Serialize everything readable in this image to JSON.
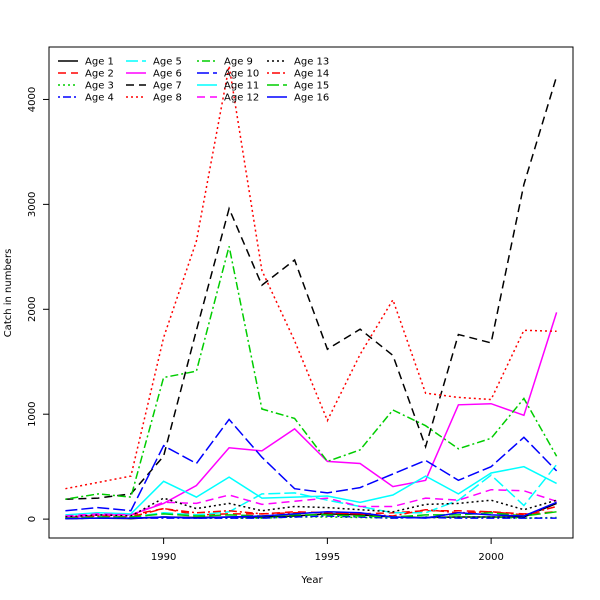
{
  "chart_data": {
    "type": "line",
    "title": "",
    "xlabel": "Year",
    "ylabel": "Catch in numbers",
    "xlim": [
      1986.5,
      2002.5
    ],
    "ylim": [
      -180,
      4500
    ],
    "x_ticks": [
      1990,
      1995,
      2000
    ],
    "y_ticks": [
      0,
      1000,
      2000,
      3000,
      4000
    ],
    "legend_position": "top-left",
    "x": [
      1987,
      1988,
      1989,
      1990,
      1991,
      1992,
      1993,
      1994,
      1995,
      1996,
      1997,
      1998,
      1999,
      2000,
      2001,
      2002
    ],
    "series": [
      {
        "name": "Age 1",
        "color": "#000000",
        "dash": "solid",
        "values": [
          5,
          10,
          5,
          20,
          15,
          20,
          20,
          30,
          50,
          40,
          20,
          15,
          20,
          20,
          20,
          150
        ]
      },
      {
        "name": "Age 2",
        "color": "#ff0000",
        "dash": "dashed",
        "values": [
          30,
          60,
          40,
          100,
          40,
          50,
          50,
          70,
          60,
          50,
          60,
          80,
          80,
          70,
          50,
          70
        ]
      },
      {
        "name": "Age 3",
        "color": "#00cd00",
        "dash": "dotted",
        "values": [
          5,
          10,
          10,
          20,
          10,
          10,
          10,
          20,
          20,
          15,
          10,
          20,
          20,
          20,
          10,
          15
        ]
      },
      {
        "name": "Age 4",
        "color": "#0000ff",
        "dash": "dotdash",
        "values": [
          5,
          10,
          10,
          10,
          10,
          10,
          10,
          20,
          30,
          20,
          10,
          15,
          10,
          10,
          10,
          10
        ]
      },
      {
        "name": "Age 5",
        "color": "#00ffff",
        "dash": "longdash",
        "values": [
          10,
          20,
          20,
          60,
          40,
          70,
          240,
          250,
          180,
          120,
          60,
          60,
          180,
          420,
          130,
          520
        ]
      },
      {
        "name": "Age 6",
        "color": "#ff00ff",
        "dash": "solid",
        "values": [
          20,
          40,
          40,
          150,
          320,
          680,
          650,
          860,
          550,
          530,
          310,
          370,
          1090,
          1100,
          990,
          1970
        ]
      },
      {
        "name": "Age 7",
        "color": "#000000",
        "dash": "dashed",
        "values": [
          190,
          200,
          240,
          600,
          1800,
          2960,
          2230,
          2470,
          1620,
          1810,
          1560,
          690,
          1760,
          1680,
          3190,
          4220
        ]
      },
      {
        "name": "Age 8",
        "color": "#ff0000",
        "dash": "dotted",
        "values": [
          290,
          350,
          410,
          1730,
          2650,
          4320,
          2370,
          1700,
          940,
          1570,
          2090,
          1200,
          1160,
          1140,
          1800,
          1790
        ]
      },
      {
        "name": "Age 9",
        "color": "#00cd00",
        "dash": "dotdash",
        "values": [
          190,
          240,
          210,
          1350,
          1410,
          2600,
          1050,
          960,
          550,
          660,
          1040,
          890,
          670,
          770,
          1150,
          600
        ]
      },
      {
        "name": "Age 10",
        "color": "#0000ff",
        "dash": "longdash",
        "values": [
          80,
          110,
          80,
          700,
          530,
          950,
          590,
          290,
          250,
          300,
          430,
          560,
          370,
          500,
          780,
          460
        ]
      },
      {
        "name": "Age 11",
        "color": "#00ffff",
        "dash": "solid",
        "values": [
          40,
          60,
          50,
          360,
          210,
          400,
          200,
          210,
          220,
          160,
          230,
          410,
          240,
          440,
          500,
          340
        ]
      },
      {
        "name": "Age 12",
        "color": "#ff00ff",
        "dash": "dashed",
        "values": [
          30,
          50,
          40,
          160,
          150,
          230,
          140,
          170,
          200,
          120,
          120,
          200,
          180,
          280,
          270,
          170
        ]
      },
      {
        "name": "Age 13",
        "color": "#000000",
        "dash": "dotted",
        "values": [
          20,
          40,
          30,
          200,
          100,
          150,
          80,
          120,
          110,
          90,
          70,
          140,
          150,
          180,
          90,
          180
        ]
      },
      {
        "name": "Age 14",
        "color": "#ff0000",
        "dash": "dotdash",
        "values": [
          10,
          30,
          20,
          100,
          60,
          80,
          50,
          60,
          60,
          50,
          30,
          90,
          60,
          70,
          40,
          120
        ]
      },
      {
        "name": "Age 15",
        "color": "#00cd00",
        "dash": "longdash",
        "values": [
          10,
          20,
          20,
          50,
          30,
          40,
          30,
          40,
          40,
          30,
          20,
          40,
          40,
          60,
          30,
          70
        ]
      },
      {
        "name": "Age 16",
        "color": "#0000ff",
        "dash": "solid",
        "values": [
          5,
          10,
          10,
          20,
          10,
          20,
          30,
          50,
          70,
          60,
          20,
          10,
          60,
          40,
          30,
          160
        ]
      }
    ]
  }
}
